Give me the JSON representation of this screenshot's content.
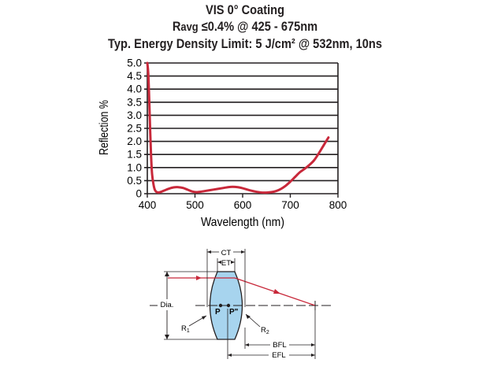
{
  "chart_data": {
    "type": "line",
    "title_lines": [
      "VIS 0° Coating",
      "≤0.4% @ 425 - 675nm",
      "Typ. Energy Density Limit: 5 J/cm² @ 532nm, 10ns"
    ],
    "title_r_main": "R",
    "title_r_sub": "avg",
    "xlabel": "Wavelength (nm)",
    "ylabel": "Reflection %",
    "xlim": [
      400,
      800
    ],
    "ylim": [
      0,
      5.0
    ],
    "x_ticks": [
      400,
      500,
      600,
      700,
      800
    ],
    "y_ticks": [
      "0",
      "0.5",
      "1.0",
      "1.5",
      "2.0",
      "2.5",
      "3.0",
      "3.5",
      "4.0",
      "4.5",
      "5.0"
    ],
    "grid": true,
    "series": [
      {
        "name": "VIS 0° Coating",
        "color": "#c8283a",
        "x": [
          400,
          402,
          404,
          406,
          408,
          410,
          413,
          416,
          420,
          425,
          430,
          438,
          445,
          455,
          465,
          475,
          485,
          495,
          505,
          520,
          540,
          560,
          575,
          590,
          600,
          615,
          630,
          645,
          660,
          670,
          680,
          690,
          700,
          710,
          720,
          730,
          740,
          750,
          760,
          770,
          780
        ],
        "y": [
          5.0,
          4.6,
          3.6,
          2.4,
          1.4,
          0.75,
          0.35,
          0.14,
          0.06,
          0.05,
          0.08,
          0.14,
          0.19,
          0.24,
          0.25,
          0.22,
          0.15,
          0.08,
          0.06,
          0.1,
          0.16,
          0.22,
          0.26,
          0.25,
          0.21,
          0.13,
          0.07,
          0.04,
          0.06,
          0.1,
          0.18,
          0.3,
          0.46,
          0.64,
          0.82,
          0.95,
          1.1,
          1.28,
          1.55,
          1.85,
          2.15
        ]
      }
    ]
  },
  "diagram": {
    "labels": {
      "ct": "CT",
      "et": "ET",
      "dia": "Dia.",
      "p": "P",
      "p_prime": "P\"",
      "r1": "R",
      "r1_sub": "1",
      "r2": "R",
      "r2_sub": "2",
      "bfl": "BFL",
      "efl": "EFL"
    }
  },
  "colors": {
    "curve": "#c8283a",
    "lens_fill": "#a7d4ee",
    "ray": "#c8283a",
    "ink": "#231f20"
  }
}
